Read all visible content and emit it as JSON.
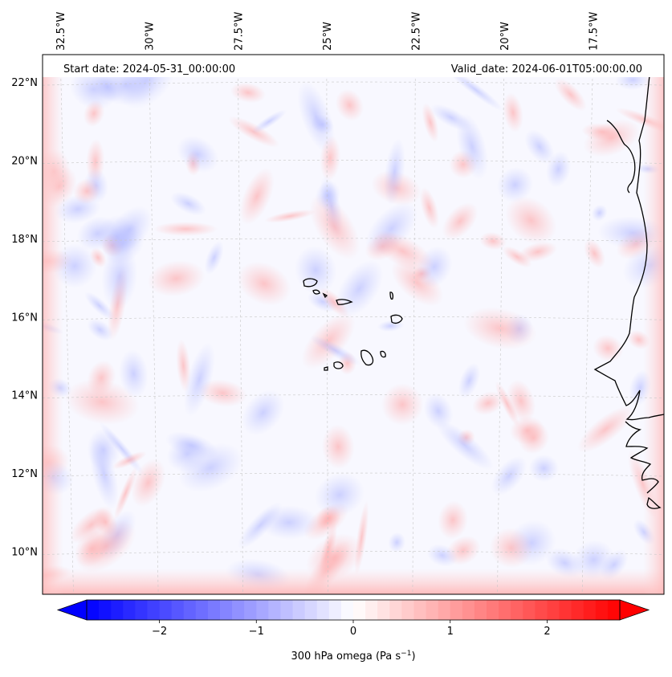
{
  "map": {
    "start_date_label": "Start date: 2024-05-31_00:00:00",
    "valid_date_label": "Valid_date: 2024-06-01T05:00:00.00",
    "lon_labels": [
      "32.5°W",
      "30°W",
      "27.5°W",
      "25°W",
      "22.5°W",
      "20°W",
      "17.5°W"
    ],
    "lat_labels": [
      "22°N",
      "20°N",
      "18°N",
      "16°N",
      "14°N",
      "12°N",
      "10°N"
    ],
    "lon_range": [
      -33.0,
      -15.5
    ],
    "lat_range": [
      8.9,
      22.7
    ],
    "variable": "300 hPa omega",
    "units": "Pa s⁻¹"
  },
  "colorbar": {
    "label": "300 hPa omega (Pa s",
    "label_sup": "−1",
    "label_close": ")",
    "range": [
      -2.75,
      2.75
    ],
    "ticks": [
      "−2",
      "−1",
      "0",
      "1",
      "2"
    ],
    "tick_values": [
      -2,
      -1,
      0,
      1,
      2
    ],
    "colors": {
      "low": "#0000ff",
      "mid": "#ffffff",
      "high": "#ff0000"
    },
    "extend": "both"
  },
  "style": {
    "field_base": "#f8f8ff",
    "coastline": "#000000",
    "gridline": "#c8c8c8"
  }
}
